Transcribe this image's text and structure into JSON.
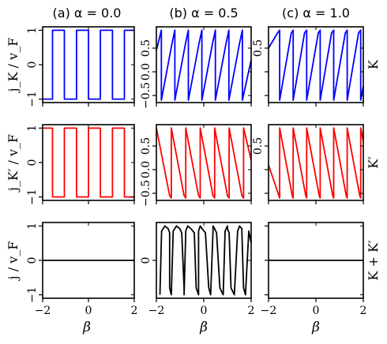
{
  "figure": {
    "column_titles": [
      "(a) α = 0.0",
      "(b) α = 0.5",
      "(c) α = 1.0"
    ],
    "row_ylabels": [
      "j_K / v_F",
      "j_K′ / v_F",
      "j / v_F"
    ],
    "row_side_labels": [
      "K",
      "K′",
      "K + K′"
    ],
    "xlabel": "β",
    "colors": {
      "row_K": "#0000ff",
      "row_Kp": "#ff0000",
      "row_sum": "#000000"
    }
  },
  "chart_data": [
    {
      "type": "line",
      "panel": "K, α = 0.0",
      "row": 0,
      "col": 0,
      "color": "#0000ff",
      "xlim": [
        -2,
        2
      ],
      "ylim": [
        -1.1,
        1.1
      ],
      "xticks": [
        -2,
        0,
        2
      ],
      "yticks": [
        -1,
        0,
        1
      ],
      "yticklabels": [
        "−1",
        "0",
        "1"
      ],
      "series": [
        {
          "x": [
            -2.0,
            -1.57,
            -1.57,
            -1.05,
            -1.05,
            -0.52,
            -0.52,
            0.0,
            0.0,
            0.52,
            0.52,
            1.05,
            1.05,
            1.57,
            1.57,
            2.0
          ],
          "y": [
            -1,
            -1,
            1,
            1,
            -1,
            -1,
            1,
            1,
            -1,
            -1,
            1,
            1,
            -1,
            -1,
            1,
            1
          ]
        }
      ]
    },
    {
      "type": "line",
      "panel": "K, α = 0.5",
      "row": 0,
      "col": 1,
      "color": "#0000ff",
      "xlim": [
        -2,
        2
      ],
      "ylim": [
        -0.65,
        0.95
      ],
      "xticks": [
        -2,
        0,
        2
      ],
      "yticks": [
        -0.5,
        0.0,
        0.5
      ],
      "yticklabels": [
        "−0.5",
        "0.0",
        "0.5"
      ],
      "series": [
        {
          "x": [
            -2.0,
            -1.79,
            -1.79,
            -1.34,
            -1.22,
            -1.22,
            -0.77,
            -0.65,
            -0.65,
            -0.2,
            -0.08,
            -0.08,
            0.37,
            0.49,
            0.49,
            0.94,
            1.06,
            1.06,
            1.51,
            1.63,
            1.63,
            2.0
          ],
          "y": [
            0.45,
            0.88,
            -0.6,
            0.6,
            0.88,
            -0.6,
            0.6,
            0.88,
            -0.6,
            0.6,
            0.88,
            -0.6,
            0.6,
            0.88,
            -0.6,
            0.6,
            0.88,
            -0.6,
            0.6,
            0.88,
            -0.6,
            0.25
          ]
        }
      ]
    },
    {
      "type": "line",
      "panel": "K, α = 1.0",
      "row": 0,
      "col": 2,
      "color": "#0000ff",
      "xlim": [
        -2,
        2
      ],
      "ylim": [
        -0.65,
        0.95
      ],
      "xticks": [
        -2,
        0,
        2
      ],
      "yticks": [
        -0.5,
        0.0,
        0.5
      ],
      "yticklabels": [
        "",
        "",
        "0.5"
      ],
      "series": [
        {
          "x": [
            -2.0,
            -1.62,
            -1.53,
            -1.53,
            -1.04,
            -0.96,
            -0.96,
            -0.48,
            -0.39,
            -0.39,
            0.1,
            0.18,
            0.18,
            0.66,
            0.75,
            0.75,
            1.24,
            1.32,
            1.32,
            1.8,
            1.89,
            1.89,
            2.0
          ],
          "y": [
            0.5,
            0.82,
            0.88,
            -0.6,
            0.82,
            0.88,
            -0.6,
            0.82,
            0.88,
            -0.6,
            0.82,
            0.88,
            -0.6,
            0.82,
            0.88,
            -0.6,
            0.82,
            0.88,
            -0.6,
            0.82,
            0.88,
            -0.6,
            -0.3
          ]
        }
      ]
    },
    {
      "type": "line",
      "panel": "K′, α = 0.0",
      "row": 1,
      "col": 0,
      "color": "#ff0000",
      "xlim": [
        -2,
        2
      ],
      "ylim": [
        -1.1,
        1.1
      ],
      "xticks": [
        -2,
        0,
        2
      ],
      "yticks": [
        -1,
        0,
        1
      ],
      "yticklabels": [
        "−1",
        "0",
        "1"
      ],
      "series": [
        {
          "x": [
            -2.0,
            -1.57,
            -1.57,
            -1.05,
            -1.05,
            -0.52,
            -0.52,
            0.0,
            0.0,
            0.52,
            0.52,
            1.05,
            1.05,
            1.57,
            1.57,
            2.0
          ],
          "y": [
            1,
            1,
            -1,
            -1,
            1,
            1,
            -1,
            -1,
            1,
            1,
            -1,
            -1,
            1,
            1,
            -1,
            -1
          ]
        }
      ]
    },
    {
      "type": "line",
      "panel": "K′, α = 0.5",
      "row": 1,
      "col": 1,
      "color": "#ff0000",
      "xlim": [
        -2,
        2
      ],
      "ylim": [
        -0.65,
        0.95
      ],
      "xticks": [
        -2,
        0,
        2
      ],
      "yticks": [
        -0.5,
        0.0,
        0.5
      ],
      "yticklabels": [
        "−0.5",
        "0.0",
        "0.5"
      ],
      "series": [
        {
          "x": [
            -2.0,
            -1.44,
            -1.37,
            -1.37,
            -0.83,
            -0.76,
            -0.76,
            -0.22,
            -0.15,
            -0.15,
            0.39,
            0.46,
            0.46,
            1.0,
            1.07,
            1.07,
            1.61,
            1.68,
            1.68,
            2.0
          ],
          "y": [
            0.88,
            -0.55,
            -0.6,
            0.88,
            -0.55,
            -0.6,
            0.88,
            -0.55,
            -0.6,
            0.88,
            -0.55,
            -0.6,
            0.88,
            -0.55,
            -0.6,
            0.88,
            -0.55,
            -0.6,
            0.88,
            0.2
          ]
        }
      ]
    },
    {
      "type": "line",
      "panel": "K′, α = 1.0",
      "row": 1,
      "col": 2,
      "color": "#ff0000",
      "xlim": [
        -2,
        2
      ],
      "ylim": [
        -0.65,
        0.95
      ],
      "xticks": [
        -2,
        0,
        2
      ],
      "yticks": [
        -0.5,
        0.0,
        0.5
      ],
      "yticklabels": [
        "",
        "",
        "0.5"
      ],
      "series": [
        {
          "x": [
            -2.0,
            -1.53,
            -1.53,
            -1.0,
            -0.96,
            -0.96,
            -0.43,
            -0.39,
            -0.39,
            0.14,
            0.18,
            0.18,
            0.71,
            0.75,
            0.75,
            1.28,
            1.32,
            1.32,
            1.85,
            1.89,
            1.89,
            2.0
          ],
          "y": [
            0.1,
            -0.6,
            0.88,
            -0.55,
            -0.6,
            0.88,
            -0.55,
            -0.6,
            0.88,
            -0.55,
            -0.6,
            0.88,
            -0.55,
            -0.6,
            0.88,
            -0.55,
            -0.6,
            0.88,
            -0.55,
            -0.6,
            0.88,
            0.6
          ]
        }
      ]
    },
    {
      "type": "line",
      "panel": "K + K′, α = 0.0",
      "row": 2,
      "col": 0,
      "color": "#000000",
      "xlim": [
        -2,
        2
      ],
      "ylim": [
        -1.1,
        1.1
      ],
      "xticks": [
        -2,
        0,
        2
      ],
      "xticklabels": [
        "−2",
        "0",
        "2"
      ],
      "yticks": [
        -1,
        0,
        1
      ],
      "yticklabels": [
        "−1",
        "0",
        "1"
      ],
      "series": [
        {
          "x": [
            -2.0,
            2.0
          ],
          "y": [
            0,
            0
          ]
        }
      ]
    },
    {
      "type": "line",
      "panel": "K + K′, α = 0.5",
      "row": 2,
      "col": 1,
      "color": "#000000",
      "xlim": [
        -2,
        2
      ],
      "ylim": [
        -1.1,
        1.1
      ],
      "xticks": [
        -2,
        0,
        2
      ],
      "xticklabels": [
        "−2",
        "0",
        "2"
      ],
      "yticks": [
        0
      ],
      "yticklabels": [
        "0"
      ],
      "series": [
        {
          "x": [
            -1.85,
            -1.78,
            -1.64,
            -1.5,
            -1.44,
            -1.44,
            -1.37,
            -1.29,
            -1.15,
            -1.01,
            -0.93,
            -0.83,
            -0.83,
            -0.76,
            -0.68,
            -0.54,
            -0.4,
            -0.32,
            -0.22,
            -0.22,
            -0.15,
            -0.07,
            0.07,
            0.21,
            0.29,
            0.39,
            0.39,
            0.46,
            0.54,
            0.68,
            0.82,
            0.9,
            1.0,
            1.0,
            1.07,
            1.15,
            1.29,
            1.43,
            1.51,
            1.61,
            1.61,
            1.68,
            1.76,
            1.9,
            2.0
          ],
          "y": [
            -1.0,
            0.85,
            1.0,
            0.92,
            0.8,
            -0.8,
            -1.0,
            0.85,
            1.0,
            0.92,
            0.8,
            -0.8,
            -1.0,
            0.85,
            1.0,
            0.92,
            0.8,
            -0.8,
            -1.0,
            0.85,
            1.0,
            0.92,
            0.8,
            -0.8,
            -1.0,
            0.85,
            1.0,
            0.92,
            0.8,
            -0.8,
            -1.0,
            0.85,
            1.0,
            0.92,
            0.8,
            -0.8,
            -1.0,
            0.85,
            1.0,
            0.92,
            0.8,
            -0.8,
            -1.0,
            0.85,
            0.5
          ]
        }
      ]
    },
    {
      "type": "line",
      "panel": "K + K′, α = 1.0",
      "row": 2,
      "col": 2,
      "color": "#000000",
      "xlim": [
        -2,
        2
      ],
      "ylim": [
        -1.1,
        1.1
      ],
      "xticks": [
        -2,
        0,
        2
      ],
      "xticklabels": [
        "−2",
        "0",
        "2"
      ],
      "yticks": [
        -1,
        0,
        1
      ],
      "yticklabels": [
        "",
        "",
        ""
      ],
      "series": [
        {
          "x": [
            -2.0,
            2.0
          ],
          "y": [
            0,
            0
          ]
        }
      ]
    }
  ]
}
